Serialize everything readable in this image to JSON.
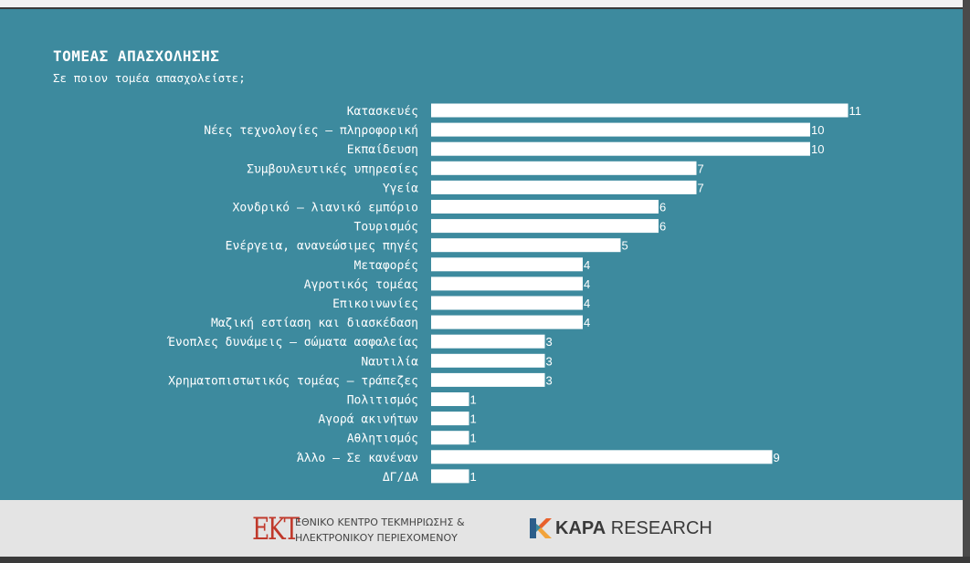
{
  "chart_data": {
    "type": "bar",
    "orientation": "horizontal",
    "title": "ΤΟΜΕΑΣ ΑΠΑΣΧΟΛΗΣΗΣ",
    "subtitle": "Σε ποιον τομέα απασχολείστε;",
    "categories": [
      "Κατασκευές",
      "Νέες τεχνολογίες – πληροφορική",
      "Εκπαίδευση",
      "Συμβουλευτικές υπηρεσίες",
      "Υγεία",
      "Χονδρικό – λιανικό εμπόριο",
      "Τουρισμός",
      "Ενέργεια, ανανεώσιμες πηγές",
      "Μεταφορές",
      "Αγροτικός τομέας",
      "Επικοινωνίες",
      "Μαζική εστίαση και διασκέδαση",
      "Ένοπλες δυνάμεις – σώματα ασφαλείας",
      "Ναυτιλία",
      "Χρηματοπιστωτικός τομέας – τράπεζες",
      "Πολιτισμός",
      "Αγορά ακινήτων",
      "Αθλητισμός",
      "Άλλο – Σε κανέναν",
      "ΔΓ/ΔΑ"
    ],
    "values": [
      11,
      10,
      10,
      7,
      7,
      6,
      6,
      5,
      4,
      4,
      4,
      4,
      3,
      3,
      3,
      1,
      1,
      1,
      9,
      1
    ],
    "xlim": [
      0,
      11
    ],
    "bar_color": "#ffffff",
    "background_color": "#3d8a9e",
    "grid": false,
    "legend": "none"
  },
  "footer": {
    "ekt_logo": "ΕΚΤ",
    "ekt_line1": "ΕΘΝΙΚΟ ΚΕΝΤΡΟ ΤΕΚΜΗΡΙΩΣΗΣ &",
    "ekt_line2": "ΗΛΕΚΤΡΟΝΙΚΟΥ ΠΕΡΙΕΧΟΜΕΝΟΥ",
    "kapa_bold": "KAPA",
    "kapa_rest": " RESEARCH",
    "ekt_color": "#c0392b",
    "kapa_colors": [
      "#e8612c",
      "#f2a33a",
      "#3d8a9e",
      "#2c5e8a"
    ],
    "kapa_icon": "kapa-k-icon"
  }
}
